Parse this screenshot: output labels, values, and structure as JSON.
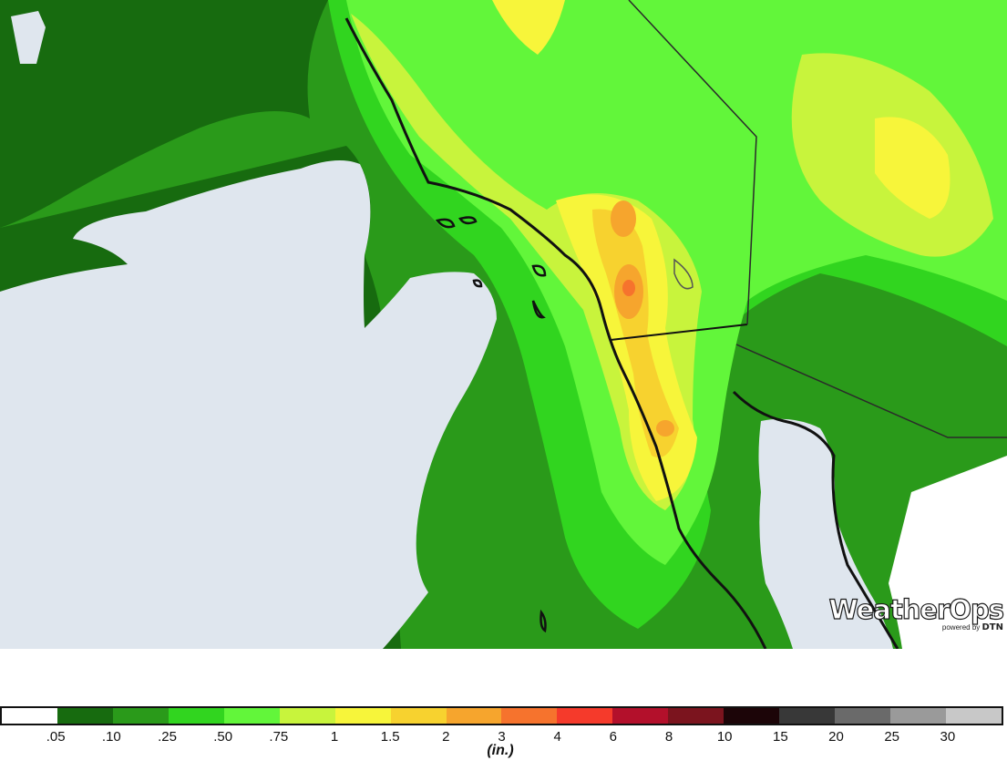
{
  "map": {
    "ocean_color": "#dfe6ee",
    "state_line_color": "#2a2a2a"
  },
  "logo": {
    "name": "WeatherOps",
    "powered_by": "powered by",
    "brand": "DTN"
  },
  "legend": {
    "unit": "(in.)",
    "colors": [
      "#ffffff",
      "#176b0f",
      "#2a9a1a",
      "#31d51f",
      "#62f63a",
      "#c8f43c",
      "#f7f53a",
      "#f7d22f",
      "#f6a52d",
      "#f6732d",
      "#f53a2b",
      "#b3102b",
      "#7b141e",
      "#1c0508",
      "#383838",
      "#6a6a6a",
      "#9a9a9a",
      "#c8c8c8"
    ],
    "labels": [
      ".05",
      ".10",
      ".25",
      ".50",
      ".75",
      "1",
      "1.5",
      "2",
      "3",
      "4",
      "6",
      "8",
      "10",
      "15",
      "20",
      "25",
      "30"
    ]
  }
}
